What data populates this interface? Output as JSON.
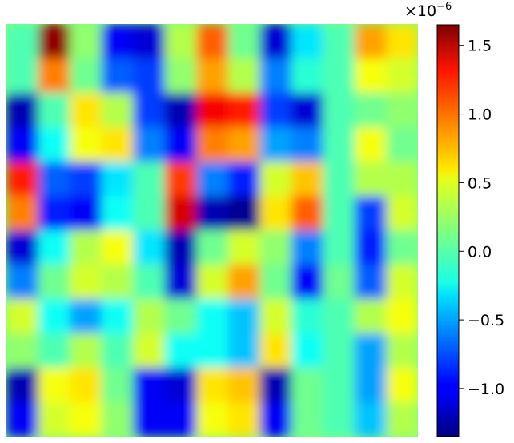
{
  "chart_data": {
    "type": "heatmap",
    "title": "",
    "xlabel": "",
    "ylabel": "",
    "colormap": "jet",
    "axes_visible": false,
    "grid": false,
    "colorbar": {
      "position": "right",
      "vmin": -1.35,
      "vmax": 1.65,
      "ticks": [
        -1.0,
        -0.5,
        0.0,
        0.5,
        1.0,
        1.5
      ],
      "tick_labels": [
        "−1.0",
        "−0.5",
        "0.0",
        "0.5",
        "1.0",
        "1.5"
      ],
      "offset_base": "×10",
      "offset_exponent": "−6"
    },
    "grid_rows": 12,
    "grid_cols": 13,
    "values": [
      [
        0.0,
        1.6,
        0.2,
        -1.0,
        -1.1,
        0.3,
        1.0,
        0.1,
        -1.1,
        -0.3,
        0.0,
        0.8,
        0.6
      ],
      [
        0.0,
        0.9,
        0.1,
        -0.7,
        -0.8,
        0.2,
        0.8,
        0.3,
        -0.6,
        -0.1,
        0.0,
        0.5,
        0.4
      ],
      [
        -1.2,
        0.0,
        0.6,
        0.3,
        -0.8,
        -1.2,
        1.3,
        1.2,
        -0.8,
        -1.1,
        0.0,
        0.1,
        0.2
      ],
      [
        -1.0,
        -0.2,
        0.5,
        0.6,
        -0.6,
        -1.0,
        0.9,
        0.8,
        -0.5,
        -0.6,
        0.0,
        0.5,
        0.1
      ],
      [
        1.2,
        -0.7,
        -0.8,
        -0.3,
        0.0,
        1.1,
        -0.6,
        -0.9,
        0.4,
        0.7,
        0.0,
        0.3,
        0.3
      ],
      [
        0.9,
        -0.9,
        -1.0,
        -0.2,
        0.0,
        1.4,
        -1.2,
        -1.3,
        0.6,
        1.0,
        0.0,
        -0.8,
        0.4
      ],
      [
        -1.1,
        -0.2,
        0.3,
        0.5,
        -0.3,
        -1.2,
        0.1,
        0.4,
        0.2,
        -0.6,
        0.0,
        -0.9,
        0.1
      ],
      [
        -0.6,
        0.1,
        0.4,
        0.3,
        0.0,
        -1.1,
        0.4,
        0.8,
        0.1,
        -1.0,
        0.1,
        -0.7,
        0.4
      ],
      [
        0.4,
        -0.2,
        -0.5,
        -0.2,
        0.3,
        0.1,
        -0.2,
        -0.4,
        0.4,
        -0.1,
        0.0,
        0.3,
        0.5
      ],
      [
        0.2,
        0.0,
        0.3,
        0.0,
        0.4,
        -0.2,
        -0.2,
        -0.4,
        0.6,
        -0.2,
        0.0,
        -0.5,
        0.3
      ],
      [
        -1.2,
        0.5,
        0.6,
        0.1,
        -1.0,
        -1.1,
        0.6,
        0.7,
        -1.2,
        0.1,
        0.0,
        -0.5,
        0.5
      ],
      [
        -1.0,
        0.4,
        0.5,
        0.2,
        -1.0,
        -1.0,
        0.5,
        0.6,
        -1.0,
        0.1,
        0.0,
        -0.4,
        0.3
      ]
    ]
  }
}
